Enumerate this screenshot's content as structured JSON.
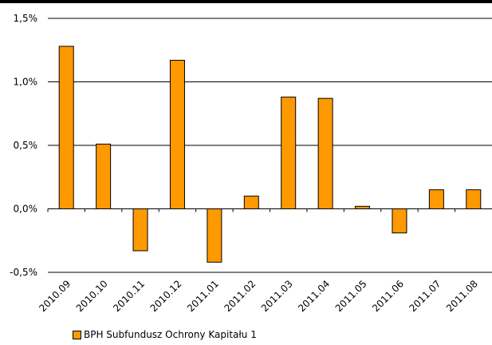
{
  "chart_data": {
    "type": "bar",
    "categories": [
      "2010.09",
      "2010.10",
      "2010.11",
      "2010.12",
      "2011.01",
      "2011.02",
      "2011.03",
      "2011.04",
      "2011.05",
      "2011.06",
      "2011.07",
      "2011.08"
    ],
    "series": [
      {
        "name": "BPH Subfundusz Ochrony Kapitału 1",
        "values": [
          1.28,
          0.51,
          -0.33,
          1.17,
          -0.42,
          0.1,
          0.88,
          0.87,
          0.02,
          -0.19,
          0.15,
          0.15
        ]
      }
    ],
    "y_ticks": [
      -0.5,
      0.0,
      0.5,
      1.0,
      1.5
    ],
    "y_tick_labels": [
      "-0,5%",
      "0,0%",
      "0,5%",
      "1,0%",
      "1,5%"
    ],
    "ylim": [
      -0.5,
      1.5
    ],
    "grid": true,
    "legend_position": "bottom-left",
    "colors": {
      "bar": "#FF9900",
      "bar_stroke": "#000000",
      "grid": "#000000"
    }
  }
}
